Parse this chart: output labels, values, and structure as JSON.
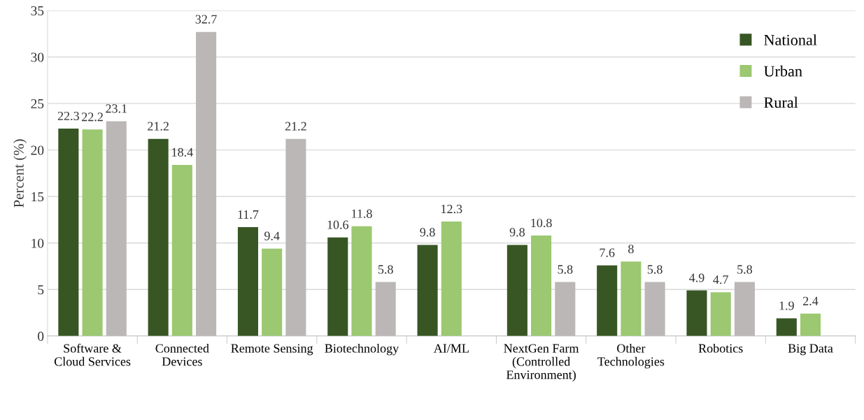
{
  "chart_data": {
    "type": "bar",
    "ylabel": "Percent (%)",
    "categories": [
      "Software &\nCloud Services",
      "Connected\nDevices",
      "Remote Sensing",
      "Biotechnology",
      "AI/ML",
      "NextGen Farm\n(Controlled\nEnvironment)",
      "Other\nTechnologies",
      "Robotics",
      "Big Data"
    ],
    "series": [
      {
        "name": "National",
        "color": "#375623",
        "values": [
          22.3,
          21.2,
          11.7,
          10.6,
          9.8,
          9.8,
          7.6,
          4.9,
          1.9
        ]
      },
      {
        "name": "Urban",
        "color": "#9bc870",
        "values": [
          22.2,
          18.4,
          9.4,
          11.8,
          12.3,
          10.8,
          8,
          4.7,
          2.4
        ]
      },
      {
        "name": "Rural",
        "color": "#bbb7b7",
        "values": [
          23.1,
          32.7,
          21.2,
          5.8,
          null,
          5.8,
          5.8,
          5.8,
          null
        ]
      }
    ],
    "ylim": [
      0,
      35
    ],
    "yticks": [
      0,
      5,
      10,
      15,
      20,
      25,
      30,
      35
    ],
    "grid": "y",
    "legend": "top right",
    "data_labels": true
  }
}
